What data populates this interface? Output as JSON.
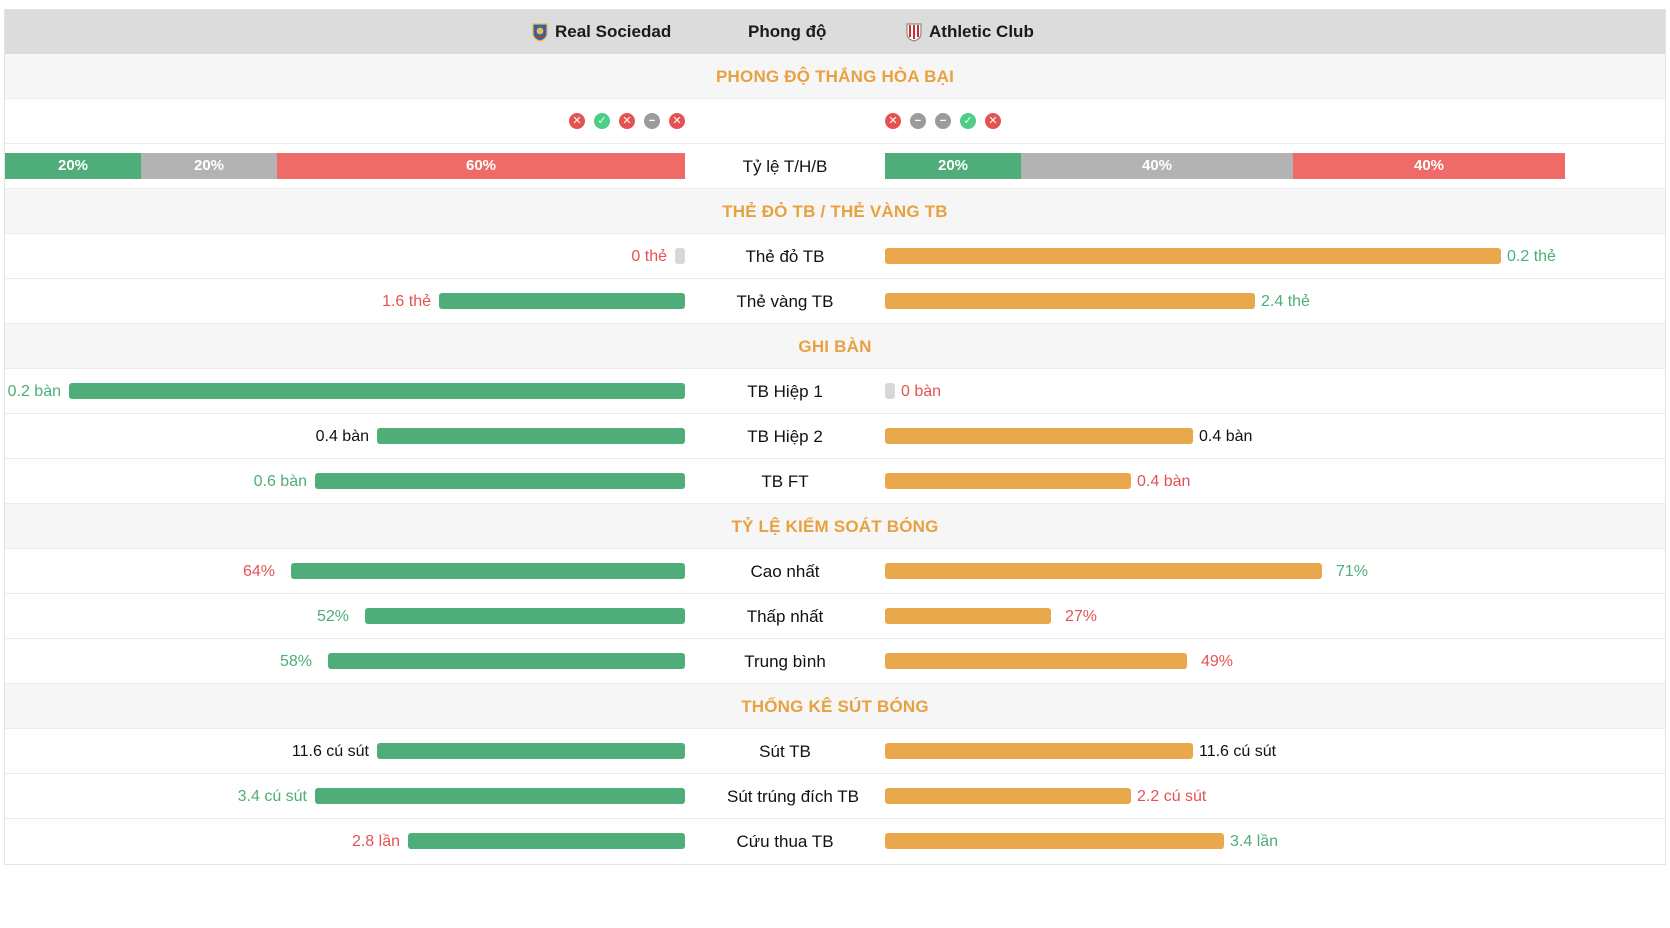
{
  "header": {
    "home_team": "Real Sociedad",
    "title": "Phong độ",
    "away_team": "Athletic Club"
  },
  "sections": {
    "form": "PHONG ĐỘ THẮNG HÒA BẠI",
    "cards": "THẺ ĐỎ TB / THẺ VÀNG TB",
    "goals": "GHI BÀN",
    "possession": "TỶ LỆ KIỂM SOÁT BÓNG",
    "shots": "THỐNG KÊ SÚT BÓNG"
  },
  "form": {
    "home": [
      "L",
      "W",
      "L",
      "D",
      "L"
    ],
    "away": [
      "L",
      "D",
      "D",
      "W",
      "L"
    ]
  },
  "wdl": {
    "label": "Tỷ lệ T/H/B",
    "home": {
      "win": "20%",
      "draw": "20%",
      "loss": "60%",
      "win_frac": 0.2,
      "draw_frac": 0.2,
      "loss_frac": 0.6
    },
    "away": {
      "win": "20%",
      "draw": "40%",
      "loss": "40%",
      "win_frac": 0.2,
      "draw_frac": 0.4,
      "loss_frac": 0.4
    }
  },
  "stats": {
    "red_cards": {
      "label": "Thẻ đỏ TB",
      "home": "0 thẻ",
      "away": "0.2 thẻ"
    },
    "yellow_cards": {
      "label": "Thẻ vàng TB",
      "home": "1.6 thẻ",
      "away": "2.4 thẻ"
    },
    "first_half": {
      "label": "TB Hiệp 1",
      "home": "0.2 bàn",
      "away": "0 bàn"
    },
    "second_half": {
      "label": "TB Hiệp 2",
      "home": "0.4 bàn",
      "away": "0.4 bàn"
    },
    "full_time": {
      "label": "TB FT",
      "home": "0.6 bàn",
      "away": "0.4 bàn"
    },
    "highest": {
      "label": "Cao nhất",
      "home": "64%",
      "away": "71%"
    },
    "lowest": {
      "label": "Thấp nhất",
      "home": "52%",
      "away": "27%"
    },
    "average": {
      "label": "Trung bình",
      "home": "58%",
      "away": "49%"
    },
    "shots_avg": {
      "label": "Sút TB",
      "home": "11.6 cú sút",
      "away": "11.6 cú sút"
    },
    "shots_on_target": {
      "label": "Sút trúng đích TB",
      "home": "3.4 cú sút",
      "away": "2.2 cú sút"
    },
    "saves": {
      "label": "Cứu thua TB",
      "home": "2.8 lần",
      "away": "3.4 lần"
    }
  },
  "bar_levels": {
    "red_cards": {
      "home": 0,
      "away": 1.0
    },
    "yellow_cards": {
      "home": 0.4,
      "away": 0.6
    },
    "first_half": {
      "home": 1.0,
      "away": 0
    },
    "second_half": {
      "home": 0.5,
      "away": 0.5
    },
    "full_time": {
      "home": 0.6,
      "away": 0.4
    },
    "highest": {
      "home": 0.64,
      "away": 0.71
    },
    "lowest": {
      "home": 0.52,
      "away": 0.27
    },
    "average": {
      "home": 0.58,
      "away": 0.49
    },
    "shots_avg": {
      "home": 0.5,
      "away": 0.5
    },
    "shots_on_target": {
      "home": 0.6,
      "away": 0.4
    },
    "saves": {
      "home": 0.45,
      "away": 0.55
    }
  },
  "colors": {
    "win": "#4ead78",
    "draw": "#b3b3b3",
    "loss": "#ee6b67",
    "home_bar": "#4ead78",
    "away_bar": "#e8a84b",
    "section_title": "#e8a140",
    "value_green": "#4ead78",
    "value_red": "#e45351"
  },
  "icons": {
    "home_logo": "real-sociedad-crest",
    "away_logo": "athletic-club-crest",
    "loss": "x-circle-icon",
    "win": "check-circle-icon",
    "draw": "minus-circle-icon"
  }
}
